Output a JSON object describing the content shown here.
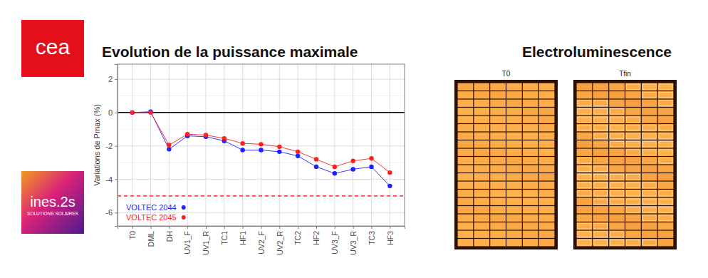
{
  "logos": {
    "cea": "cea",
    "ines": {
      "name": "ines.2s",
      "tagline": "SOLUTIONS SOLAIRES"
    }
  },
  "chart_data": {
    "type": "line",
    "title": "Evolution de la puissance maximale",
    "y_label": "Variations de Pmax (%)",
    "categories": [
      "T0",
      "DML",
      "DH",
      "UV1_F",
      "UV1_R",
      "TC1",
      "HF1",
      "UV2_F",
      "UV2_R",
      "TC2",
      "HF2",
      "UV3_F",
      "UV3_R",
      "TC3",
      "HF3"
    ],
    "series": [
      {
        "name": "VOLTEC 2044",
        "color": "#1f1fff",
        "marker": "circle",
        "values": [
          0,
          0.05,
          -2.2,
          -1.4,
          -1.45,
          -1.7,
          -2.25,
          -2.25,
          -2.35,
          -2.6,
          -3.25,
          -3.65,
          -3.4,
          -3.25,
          -4.4
        ]
      },
      {
        "name": "VOLTEC 2045",
        "color": "#ff1f1f",
        "marker": "circle",
        "values": [
          0,
          0,
          -1.95,
          -1.3,
          -1.35,
          -1.55,
          -1.85,
          -1.9,
          -2.05,
          -2.35,
          -2.8,
          -3.25,
          -2.9,
          -2.75,
          -3.6
        ]
      }
    ],
    "ylim": [
      -6.8,
      2.9
    ],
    "yticks": [
      -6,
      -4,
      -2,
      0,
      2
    ],
    "grid": true,
    "legend": "bottom-left",
    "reference_lines": [
      {
        "value": 0,
        "color": "#000000",
        "line_style": "solid"
      },
      {
        "value": -5,
        "color": "#ff0000",
        "line_style": "dashed"
      }
    ]
  },
  "electroluminescence": {
    "title": "Electroluminescence",
    "panels": [
      "T0",
      "Tfin"
    ]
  }
}
